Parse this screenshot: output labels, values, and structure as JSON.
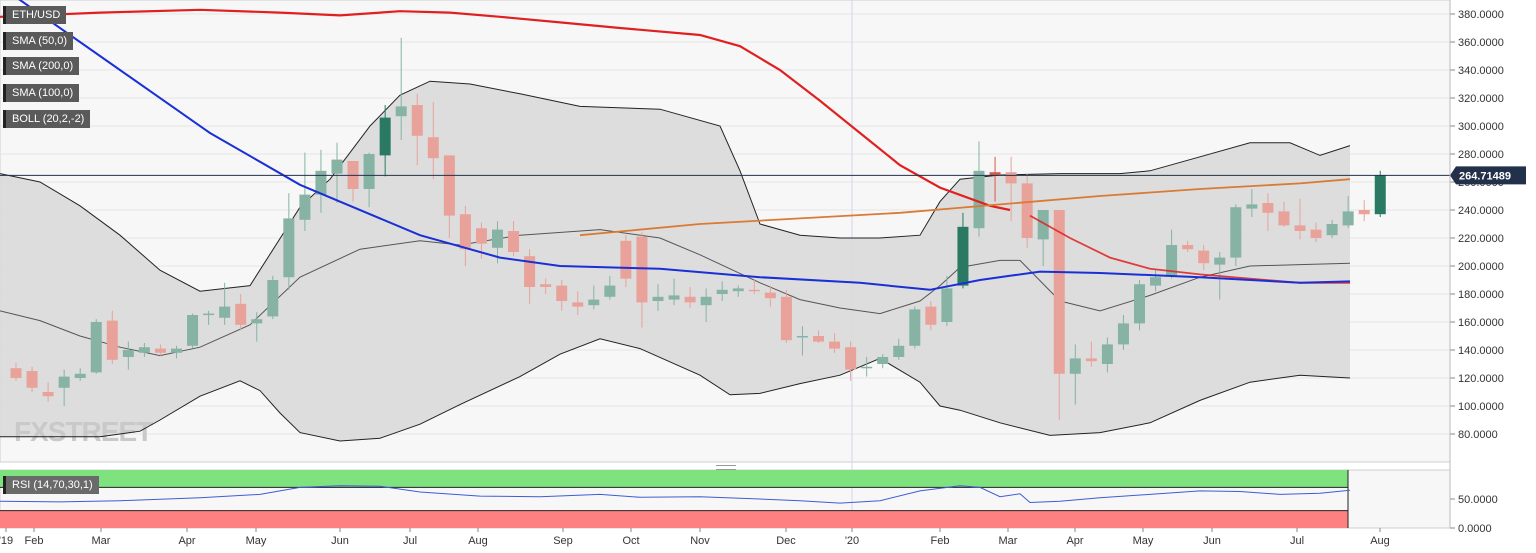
{
  "legend": [
    {
      "label": "ETH/USD",
      "accent": "#222222"
    },
    {
      "label": "SMA (50,0)",
      "accent": "#1a2fd6"
    },
    {
      "label": "SMA (200,0)",
      "accent": "#e0803a"
    },
    {
      "label": "SMA (100,0)",
      "accent": "#e02020"
    },
    {
      "label": "BOLL (20,2,-2)",
      "accent": "#222222"
    }
  ],
  "rsi_label": "RSI (14,70,30,1)",
  "watermark": "FXSTREET",
  "last_price": "264.71489",
  "colors": {
    "up": "#2a7a63",
    "up_light": "#86b3a3",
    "down": "#d9584a",
    "down_light": "#e8a29a",
    "sma50": "#1a2fd6",
    "sma100": "#e02020",
    "sma200": "#d97a35",
    "band": "#d9d9d9",
    "boll": "#222222",
    "rsi_over": "#7ee27e",
    "rsi_under": "#ff8080",
    "rsi_line": "#3f5bd6"
  },
  "chart_data": [
    {
      "type": "candlestick",
      "title": "ETH/USD",
      "ylim": [
        60,
        390
      ],
      "y_ticks": [
        "80.0000",
        "100.0000",
        "120.0000",
        "140.0000",
        "160.0000",
        "180.0000",
        "200.0000",
        "220.0000",
        "240.0000",
        "260.0000",
        "280.0000",
        "300.0000",
        "320.0000",
        "340.0000",
        "360.0000",
        "380.0000"
      ],
      "x_ticks": [
        "'19",
        "Feb",
        "Mar",
        "Apr",
        "May",
        "Jun",
        "Jul",
        "Aug",
        "Sep",
        "Oct",
        "Nov",
        "Dec",
        "'20",
        "Feb",
        "Mar",
        "Apr",
        "May",
        "Jun",
        "Jul",
        "Aug"
      ],
      "candles": [
        {
          "o": 127,
          "h": 131,
          "l": 118,
          "c": 120
        },
        {
          "o": 125,
          "h": 128,
          "l": 110,
          "c": 113
        },
        {
          "o": 110,
          "h": 117,
          "l": 103,
          "c": 107
        },
        {
          "o": 113,
          "h": 126,
          "l": 100,
          "c": 121
        },
        {
          "o": 120,
          "h": 127,
          "l": 118,
          "c": 123
        },
        {
          "o": 124,
          "h": 162,
          "l": 123,
          "c": 160
        },
        {
          "o": 161,
          "h": 168,
          "l": 130,
          "c": 133
        },
        {
          "o": 135,
          "h": 146,
          "l": 126,
          "c": 140
        },
        {
          "o": 138,
          "h": 145,
          "l": 135,
          "c": 142
        },
        {
          "o": 141,
          "h": 144,
          "l": 136,
          "c": 138
        },
        {
          "o": 138,
          "h": 143,
          "l": 134,
          "c": 141
        },
        {
          "o": 143,
          "h": 166,
          "l": 141,
          "c": 165
        },
        {
          "o": 165,
          "h": 168,
          "l": 158,
          "c": 166
        },
        {
          "o": 163,
          "h": 188,
          "l": 158,
          "c": 171
        },
        {
          "o": 173,
          "h": 180,
          "l": 154,
          "c": 158
        },
        {
          "o": 159,
          "h": 167,
          "l": 146,
          "c": 162
        },
        {
          "o": 164,
          "h": 193,
          "l": 162,
          "c": 190
        },
        {
          "o": 192,
          "h": 252,
          "l": 183,
          "c": 234
        },
        {
          "o": 233,
          "h": 281,
          "l": 225,
          "c": 251
        },
        {
          "o": 251,
          "h": 283,
          "l": 238,
          "c": 268
        },
        {
          "o": 266,
          "h": 288,
          "l": 245,
          "c": 276
        },
        {
          "o": 275,
          "h": 275,
          "l": 246,
          "c": 255
        },
        {
          "o": 255,
          "h": 281,
          "l": 242,
          "c": 280
        },
        {
          "o": 279,
          "h": 315,
          "l": 264,
          "c": 306
        },
        {
          "o": 307,
          "h": 363,
          "l": 290,
          "c": 314
        },
        {
          "o": 315,
          "h": 323,
          "l": 272,
          "c": 293
        },
        {
          "o": 292,
          "h": 317,
          "l": 262,
          "c": 277
        },
        {
          "o": 279,
          "h": 279,
          "l": 220,
          "c": 236
        },
        {
          "o": 237,
          "h": 243,
          "l": 200,
          "c": 212
        },
        {
          "o": 227,
          "h": 231,
          "l": 205,
          "c": 216
        },
        {
          "o": 213,
          "h": 232,
          "l": 202,
          "c": 226
        },
        {
          "o": 225,
          "h": 232,
          "l": 207,
          "c": 210
        },
        {
          "o": 207,
          "h": 212,
          "l": 173,
          "c": 185
        },
        {
          "o": 187,
          "h": 191,
          "l": 180,
          "c": 185
        },
        {
          "o": 186,
          "h": 190,
          "l": 168,
          "c": 175
        },
        {
          "o": 174,
          "h": 182,
          "l": 165,
          "c": 171
        },
        {
          "o": 172,
          "h": 186,
          "l": 169,
          "c": 176
        },
        {
          "o": 178,
          "h": 193,
          "l": 176,
          "c": 186
        },
        {
          "o": 218,
          "h": 222,
          "l": 185,
          "c": 191
        },
        {
          "o": 221,
          "h": 224,
          "l": 156,
          "c": 174
        },
        {
          "o": 175,
          "h": 187,
          "l": 168,
          "c": 178
        },
        {
          "o": 176,
          "h": 191,
          "l": 172,
          "c": 179
        },
        {
          "o": 178,
          "h": 185,
          "l": 170,
          "c": 174
        },
        {
          "o": 172,
          "h": 184,
          "l": 160,
          "c": 178
        },
        {
          "o": 180,
          "h": 189,
          "l": 175,
          "c": 183
        },
        {
          "o": 182,
          "h": 186,
          "l": 178,
          "c": 184
        },
        {
          "o": 183,
          "h": 190,
          "l": 180,
          "c": 182
        },
        {
          "o": 181,
          "h": 186,
          "l": 171,
          "c": 177
        },
        {
          "o": 178,
          "h": 183,
          "l": 145,
          "c": 147
        },
        {
          "o": 149,
          "h": 157,
          "l": 136,
          "c": 150
        },
        {
          "o": 150,
          "h": 154,
          "l": 145,
          "c": 146
        },
        {
          "o": 146,
          "h": 152,
          "l": 138,
          "c": 141
        },
        {
          "o": 142,
          "h": 146,
          "l": 118,
          "c": 126
        },
        {
          "o": 127,
          "h": 135,
          "l": 121,
          "c": 128
        },
        {
          "o": 130,
          "h": 137,
          "l": 127,
          "c": 135
        },
        {
          "o": 135,
          "h": 148,
          "l": 133,
          "c": 143
        },
        {
          "o": 143,
          "h": 171,
          "l": 141,
          "c": 169
        },
        {
          "o": 171,
          "h": 175,
          "l": 154,
          "c": 158
        },
        {
          "o": 160,
          "h": 193,
          "l": 157,
          "c": 184
        },
        {
          "o": 186,
          "h": 238,
          "l": 184,
          "c": 228
        },
        {
          "o": 227,
          "h": 289,
          "l": 221,
          "c": 268
        },
        {
          "o": 267,
          "h": 278,
          "l": 246,
          "c": 265
        },
        {
          "o": 267,
          "h": 278,
          "l": 232,
          "c": 259
        },
        {
          "o": 259,
          "h": 266,
          "l": 213,
          "c": 220
        },
        {
          "o": 219,
          "h": 240,
          "l": 200,
          "c": 240
        },
        {
          "o": 240,
          "h": 240,
          "l": 90,
          "c": 123
        },
        {
          "o": 123,
          "h": 144,
          "l": 101,
          "c": 134
        },
        {
          "o": 134,
          "h": 146,
          "l": 128,
          "c": 132
        },
        {
          "o": 130,
          "h": 149,
          "l": 124,
          "c": 144
        },
        {
          "o": 144,
          "h": 165,
          "l": 140,
          "c": 159
        },
        {
          "o": 159,
          "h": 190,
          "l": 154,
          "c": 187
        },
        {
          "o": 186,
          "h": 197,
          "l": 182,
          "c": 192
        },
        {
          "o": 193,
          "h": 226,
          "l": 191,
          "c": 215
        },
        {
          "o": 215,
          "h": 218,
          "l": 210,
          "c": 212
        },
        {
          "o": 211,
          "h": 215,
          "l": 197,
          "c": 202
        },
        {
          "o": 201,
          "h": 210,
          "l": 176,
          "c": 206
        },
        {
          "o": 206,
          "h": 244,
          "l": 200,
          "c": 242
        },
        {
          "o": 241,
          "h": 255,
          "l": 235,
          "c": 244
        },
        {
          "o": 245,
          "h": 252,
          "l": 225,
          "c": 238
        },
        {
          "o": 239,
          "h": 246,
          "l": 228,
          "c": 229
        },
        {
          "o": 229,
          "h": 248,
          "l": 219,
          "c": 225
        },
        {
          "o": 226,
          "h": 231,
          "l": 217,
          "c": 220
        },
        {
          "o": 222,
          "h": 233,
          "l": 220,
          "c": 230
        },
        {
          "o": 229,
          "h": 250,
          "l": 227,
          "c": 239
        },
        {
          "o": 240,
          "h": 247,
          "l": 232,
          "c": 237
        },
        {
          "o": 237,
          "h": 268,
          "l": 235,
          "c": 265
        }
      ],
      "sma50": [
        [
          0,
          400
        ],
        [
          110,
          345
        ],
        [
          210,
          295
        ],
        [
          300,
          258
        ],
        [
          420,
          222
        ],
        [
          500,
          206
        ],
        [
          560,
          200
        ],
        [
          660,
          198
        ],
        [
          760,
          192
        ],
        [
          860,
          188
        ],
        [
          930,
          183
        ],
        [
          980,
          190
        ],
        [
          1010,
          193
        ],
        [
          1040,
          196
        ],
        [
          1100,
          195
        ],
        [
          1200,
          192
        ],
        [
          1300,
          188
        ],
        [
          1350,
          189
        ]
      ],
      "sma100": [
        [
          1030,
          236
        ],
        [
          1070,
          220
        ],
        [
          1110,
          206
        ],
        [
          1150,
          198
        ],
        [
          1200,
          194
        ],
        [
          1250,
          191
        ],
        [
          1300,
          188
        ],
        [
          1350,
          188
        ]
      ],
      "sma200_red": [
        [
          0,
          378
        ],
        [
          100,
          381
        ],
        [
          200,
          383
        ],
        [
          280,
          381
        ],
        [
          340,
          379
        ],
        [
          400,
          382
        ],
        [
          450,
          381
        ],
        [
          500,
          378
        ],
        [
          560,
          374
        ],
        [
          620,
          370
        ],
        [
          700,
          365
        ],
        [
          740,
          357
        ],
        [
          780,
          340
        ],
        [
          820,
          318
        ],
        [
          860,
          295
        ],
        [
          900,
          272
        ],
        [
          940,
          256
        ],
        [
          990,
          243
        ],
        [
          1010,
          240
        ]
      ],
      "sma200_orange": [
        [
          580,
          222
        ],
        [
          700,
          230
        ],
        [
          800,
          234
        ],
        [
          900,
          238
        ],
        [
          950,
          241
        ],
        [
          1000,
          244
        ],
        [
          1100,
          250
        ],
        [
          1200,
          255
        ],
        [
          1300,
          259
        ],
        [
          1350,
          262
        ]
      ],
      "boll_mid": [
        [
          0,
          168
        ],
        [
          40,
          161
        ],
        [
          80,
          150
        ],
        [
          120,
          142
        ],
        [
          160,
          136
        ],
        [
          200,
          142
        ],
        [
          250,
          158
        ],
        [
          300,
          192
        ],
        [
          360,
          212
        ],
        [
          420,
          218
        ],
        [
          460,
          215
        ],
        [
          520,
          222
        ],
        [
          600,
          226
        ],
        [
          660,
          220
        ],
        [
          700,
          208
        ],
        [
          760,
          188
        ],
        [
          800,
          176
        ],
        [
          840,
          170
        ],
        [
          880,
          166
        ],
        [
          920,
          175
        ],
        [
          940,
          186
        ],
        [
          960,
          199
        ],
        [
          1000,
          204
        ],
        [
          1020,
          204
        ],
        [
          1060,
          175
        ],
        [
          1100,
          168
        ],
        [
          1150,
          179
        ],
        [
          1200,
          192
        ],
        [
          1250,
          200
        ],
        [
          1300,
          201
        ],
        [
          1350,
          202
        ]
      ],
      "boll_upper": [
        [
          0,
          266
        ],
        [
          40,
          260
        ],
        [
          80,
          243
        ],
        [
          120,
          222
        ],
        [
          160,
          197
        ],
        [
          200,
          182
        ],
        [
          250,
          186
        ],
        [
          300,
          242
        ],
        [
          330,
          262
        ],
        [
          370,
          300
        ],
        [
          400,
          322
        ],
        [
          430,
          332
        ],
        [
          470,
          330
        ],
        [
          520,
          323
        ],
        [
          580,
          314
        ],
        [
          660,
          312
        ],
        [
          720,
          300
        ],
        [
          740,
          268
        ],
        [
          760,
          230
        ],
        [
          800,
          222
        ],
        [
          840,
          220
        ],
        [
          880,
          220
        ],
        [
          920,
          222
        ],
        [
          940,
          246
        ],
        [
          960,
          262
        ],
        [
          1000,
          265
        ],
        [
          1060,
          266
        ],
        [
          1120,
          266
        ],
        [
          1150,
          268
        ],
        [
          1200,
          278
        ],
        [
          1250,
          288
        ],
        [
          1290,
          288
        ],
        [
          1320,
          279
        ],
        [
          1350,
          286
        ]
      ],
      "boll_lower": [
        [
          0,
          78
        ],
        [
          50,
          78
        ],
        [
          100,
          78
        ],
        [
          140,
          82
        ],
        [
          160,
          90
        ],
        [
          200,
          107
        ],
        [
          240,
          118
        ],
        [
          260,
          111
        ],
        [
          280,
          95
        ],
        [
          300,
          81
        ],
        [
          340,
          75
        ],
        [
          380,
          77
        ],
        [
          420,
          87
        ],
        [
          460,
          101
        ],
        [
          520,
          121
        ],
        [
          560,
          137
        ],
        [
          600,
          148
        ],
        [
          640,
          141
        ],
        [
          700,
          122
        ],
        [
          730,
          108
        ],
        [
          760,
          109
        ],
        [
          800,
          116
        ],
        [
          840,
          122
        ],
        [
          880,
          134
        ],
        [
          920,
          117
        ],
        [
          940,
          100
        ],
        [
          960,
          97
        ],
        [
          1000,
          88
        ],
        [
          1050,
          79
        ],
        [
          1100,
          81
        ],
        [
          1150,
          88
        ],
        [
          1200,
          104
        ],
        [
          1250,
          117
        ],
        [
          1300,
          122
        ],
        [
          1350,
          120
        ]
      ]
    },
    {
      "type": "line",
      "title": "RSI (14,70,30,1)",
      "ylim": [
        0,
        100
      ],
      "y_ticks": [
        "50.0000",
        "0.0000"
      ],
      "rsi": [
        [
          0,
          46
        ],
        [
          60,
          45
        ],
        [
          120,
          47
        ],
        [
          200,
          52
        ],
        [
          260,
          58
        ],
        [
          300,
          70
        ],
        [
          340,
          73
        ],
        [
          380,
          72
        ],
        [
          420,
          62
        ],
        [
          480,
          55
        ],
        [
          540,
          54
        ],
        [
          600,
          58
        ],
        [
          640,
          53
        ],
        [
          700,
          54
        ],
        [
          760,
          50
        ],
        [
          800,
          47
        ],
        [
          840,
          43
        ],
        [
          880,
          47
        ],
        [
          920,
          64
        ],
        [
          960,
          73
        ],
        [
          980,
          70
        ],
        [
          1000,
          54
        ],
        [
          1020,
          59
        ],
        [
          1030,
          44
        ],
        [
          1060,
          46
        ],
        [
          1100,
          52
        ],
        [
          1150,
          58
        ],
        [
          1200,
          64
        ],
        [
          1240,
          63
        ],
        [
          1280,
          58
        ],
        [
          1320,
          60
        ],
        [
          1350,
          65
        ]
      ]
    }
  ]
}
